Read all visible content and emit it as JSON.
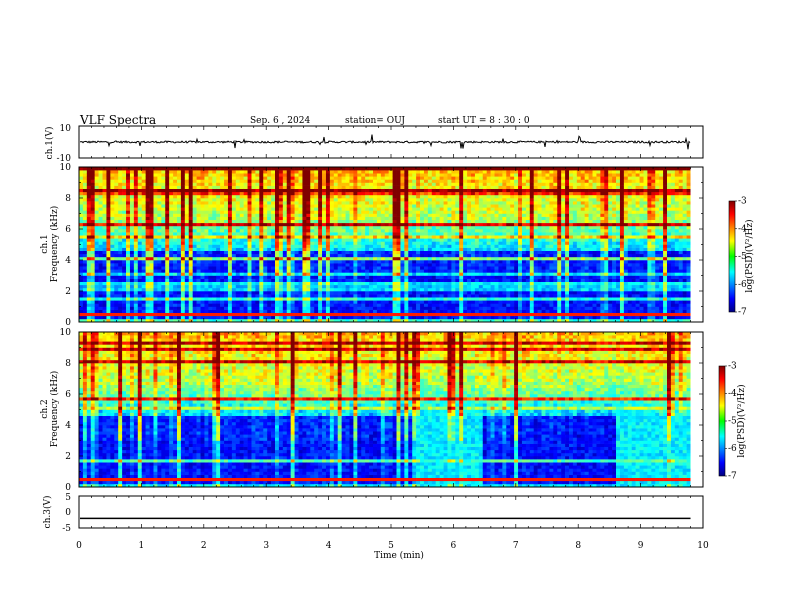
{
  "header": {
    "title": "VLF Spectra",
    "date": "Sep. 6 , 2024",
    "station": "station= OUJ",
    "start": "start UT = 8 : 30 : 0"
  },
  "chart_data": [
    {
      "type": "line",
      "id": "ch1-waveform",
      "ylabel": "ch.1(V)",
      "ylim": [
        -10,
        10
      ],
      "y_ticks": [
        "10",
        "-10"
      ],
      "xlim": [
        0,
        10
      ],
      "baseline_level": "0 V (steady waveform with occasional spikes)"
    },
    {
      "type": "heatmap",
      "id": "ch1-spectrogram",
      "ylabel_channel": "ch.1",
      "ylabel": "Frequency (kHz)",
      "ylim": [
        0,
        10
      ],
      "y_ticks": [
        "0",
        "2",
        "4",
        "6",
        "8",
        "10"
      ],
      "xlim": [
        0,
        10
      ],
      "data_end_min": 9.8,
      "colorbar": {
        "label": "log(PSD)(V²/Hz)",
        "range": [
          -7,
          -3
        ],
        "ticks": [
          "-3",
          "-4",
          "-5",
          "-6",
          "-7"
        ]
      }
    },
    {
      "type": "heatmap",
      "id": "ch2-spectrogram",
      "ylabel_channel": "ch.2",
      "ylabel": "Frequency (kHz)",
      "ylim": [
        0,
        10
      ],
      "y_ticks": [
        "0",
        "2",
        "4",
        "6",
        "8",
        "10"
      ],
      "xlim": [
        0,
        10
      ],
      "data_end_min": 9.8,
      "noise_bursts_min": [
        [
          5.4,
          6.5
        ],
        [
          8.6,
          9.8
        ]
      ],
      "colorbar": {
        "label": "log(PSD)(V²/Hz)",
        "range": [
          -7,
          -3
        ],
        "ticks": [
          "-3",
          "-4",
          "-5",
          "-6",
          "-7"
        ]
      }
    },
    {
      "type": "line",
      "id": "ch3-waveform",
      "ylabel": "ch.3(V)",
      "ylim": [
        -5,
        5
      ],
      "y_ticks": [
        "5",
        "0",
        "-5"
      ],
      "xlim": [
        0,
        10
      ],
      "constant_value": -2.0
    }
  ],
  "x_axis": {
    "label": "Time (min)",
    "ticks": [
      "0",
      "1",
      "2",
      "3",
      "4",
      "5",
      "6",
      "7",
      "8",
      "9",
      "10"
    ]
  }
}
